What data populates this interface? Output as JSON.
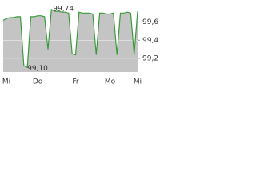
{
  "chart_data": {
    "type": "area",
    "categories": [
      "Mi",
      null,
      null,
      null,
      null,
      null,
      null,
      null,
      null,
      null,
      "Do",
      null,
      null,
      null,
      null,
      null,
      null,
      null,
      null,
      null,
      null,
      "Fr",
      null,
      null,
      null,
      null,
      null,
      null,
      null,
      null,
      null,
      "Mo",
      null,
      null,
      null,
      null,
      null,
      null,
      null,
      "Mi"
    ],
    "series": [
      {
        "color": "#3c9a3c",
        "fill": "#c4c4c4",
        "values": [
          99.62,
          99.64,
          99.65,
          99.65,
          99.66,
          99.66,
          99.12,
          99.1,
          99.66,
          99.66,
          99.67,
          99.67,
          99.66,
          99.3,
          99.74,
          99.72,
          99.72,
          99.71,
          99.71,
          99.7,
          99.25,
          99.24,
          99.71,
          99.7,
          99.7,
          99.7,
          99.69,
          99.24,
          99.7,
          99.7,
          99.69,
          99.69,
          99.7,
          99.24,
          99.7,
          99.7,
          99.71,
          99.7,
          99.24,
          99.72
        ],
        "value_labels": [
          null,
          null,
          null,
          null,
          null,
          null,
          null,
          "99,10",
          null,
          null,
          null,
          null,
          null,
          null,
          "99,74",
          null,
          null,
          null,
          null,
          null,
          null,
          null,
          null,
          null,
          null,
          null,
          null,
          null,
          null,
          null,
          null,
          null,
          null,
          null,
          null,
          null,
          null,
          null,
          null,
          null
        ]
      }
    ],
    "ylim": [
      99.05,
      99.8
    ],
    "yticks": [
      {
        "value": 99.2,
        "label": "99,2"
      },
      {
        "value": 99.4,
        "label": "99,4"
      },
      {
        "value": 99.6,
        "label": "99,6"
      }
    ],
    "grid": true
  }
}
